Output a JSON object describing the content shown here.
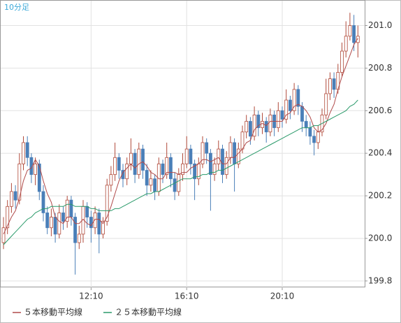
{
  "chart_data": {
    "type": "candlestick",
    "label": "10分足",
    "open": [
      199.98,
      200.05,
      200.15,
      200.22,
      200.18,
      200.35,
      200.45,
      200.38,
      200.3,
      200.35,
      200.22,
      200.12,
      200.05,
      200.1,
      200.02,
      200.12,
      200.08,
      200.18,
      200.1,
      199.98,
      200.02,
      200.15,
      200.1,
      200.05,
      200.12,
      200.02,
      200.08,
      200.25,
      200.3,
      200.38,
      200.32,
      200.28,
      200.35,
      200.4,
      200.3,
      200.42,
      200.32,
      200.25,
      200.28,
      200.22,
      200.35,
      200.3,
      200.38,
      200.28,
      200.22,
      200.3,
      200.35,
      200.42,
      200.35,
      200.28,
      200.35,
      200.45,
      200.4,
      200.3,
      200.35,
      200.42,
      200.3,
      200.38,
      200.45,
      200.35,
      200.42,
      200.5,
      200.55,
      200.48,
      200.58,
      200.52,
      200.55,
      200.5,
      200.58,
      200.52,
      200.6,
      200.56,
      200.65,
      200.6,
      200.7,
      200.62,
      200.55,
      200.52,
      200.48,
      200.45,
      200.5,
      200.58,
      200.68,
      200.75,
      200.7,
      200.78,
      200.88,
      200.95,
      201.0,
      200.92
    ],
    "high": [
      200.1,
      200.18,
      200.26,
      200.25,
      200.4,
      200.48,
      200.48,
      200.4,
      200.38,
      200.37,
      200.25,
      200.15,
      200.14,
      200.12,
      200.16,
      200.15,
      200.2,
      200.2,
      200.12,
      200.06,
      200.18,
      200.17,
      200.13,
      200.15,
      200.14,
      200.1,
      200.28,
      200.34,
      200.45,
      200.4,
      200.35,
      200.38,
      200.47,
      200.42,
      200.45,
      200.44,
      200.35,
      200.32,
      200.3,
      200.38,
      200.37,
      200.45,
      200.4,
      200.31,
      200.33,
      200.4,
      200.48,
      200.44,
      200.37,
      200.38,
      200.48,
      200.47,
      200.42,
      200.38,
      200.46,
      200.44,
      200.41,
      200.48,
      200.47,
      200.45,
      200.53,
      200.58,
      200.57,
      200.62,
      200.6,
      200.59,
      200.57,
      200.61,
      200.6,
      200.64,
      200.62,
      200.7,
      200.67,
      200.73,
      200.72,
      200.64,
      200.58,
      200.55,
      200.51,
      200.53,
      200.61,
      200.75,
      200.78,
      200.78,
      200.82,
      200.92,
      201.02,
      201.06,
      201.05,
      201.0
    ],
    "low": [
      199.95,
      200.02,
      200.12,
      200.14,
      200.16,
      200.32,
      200.34,
      200.26,
      200.25,
      200.18,
      200.08,
      200.02,
      200.01,
      199.98,
      200.0,
      200.04,
      200.05,
      200.06,
      199.83,
      199.95,
      199.98,
      200.05,
      199.98,
      200.02,
      199.93,
      200.0,
      200.06,
      200.22,
      200.27,
      200.28,
      200.24,
      200.25,
      200.32,
      200.26,
      200.28,
      200.28,
      200.2,
      200.22,
      200.18,
      200.2,
      200.26,
      200.28,
      200.24,
      200.18,
      200.2,
      200.27,
      200.33,
      200.3,
      200.18,
      200.25,
      200.33,
      200.35,
      200.13,
      200.27,
      200.32,
      200.26,
      200.28,
      200.35,
      200.22,
      200.33,
      200.4,
      200.47,
      200.44,
      200.46,
      200.48,
      200.49,
      200.45,
      200.48,
      200.48,
      200.5,
      200.52,
      200.54,
      200.56,
      200.58,
      200.58,
      200.5,
      200.48,
      200.44,
      200.39,
      200.42,
      200.48,
      200.56,
      200.65,
      200.66,
      200.68,
      200.76,
      200.85,
      200.93,
      200.88,
      200.85
    ],
    "close": [
      200.05,
      200.15,
      200.22,
      200.18,
      200.35,
      200.45,
      200.38,
      200.3,
      200.35,
      200.22,
      200.12,
      200.05,
      200.1,
      200.02,
      200.12,
      200.08,
      200.18,
      200.1,
      199.98,
      200.02,
      200.15,
      200.1,
      200.05,
      200.12,
      200.02,
      200.08,
      200.25,
      200.3,
      200.38,
      200.32,
      200.28,
      200.35,
      200.4,
      200.3,
      200.42,
      200.32,
      200.25,
      200.28,
      200.22,
      200.35,
      200.3,
      200.38,
      200.28,
      200.22,
      200.3,
      200.35,
      200.42,
      200.35,
      200.28,
      200.35,
      200.45,
      200.4,
      200.3,
      200.35,
      200.42,
      200.3,
      200.38,
      200.45,
      200.35,
      200.42,
      200.5,
      200.55,
      200.48,
      200.58,
      200.52,
      200.55,
      200.5,
      200.58,
      200.52,
      200.6,
      200.56,
      200.65,
      200.6,
      200.7,
      200.62,
      200.55,
      200.52,
      200.48,
      200.45,
      200.5,
      200.58,
      200.68,
      200.75,
      200.7,
      200.78,
      200.88,
      200.95,
      201.0,
      200.92,
      200.95
    ],
    "up_color": "#b04a3a",
    "down_color": "#4a7fb8",
    "series": [
      {
        "name": "５本移動平均線",
        "color": "#b04a4a",
        "values": [
          200.02,
          200.06,
          200.1,
          200.13,
          200.19,
          200.27,
          200.32,
          200.33,
          200.37,
          200.34,
          200.27,
          200.21,
          200.17,
          200.1,
          200.08,
          200.07,
          200.1,
          200.1,
          200.07,
          200.07,
          200.09,
          200.07,
          200.06,
          200.09,
          200.09,
          200.07,
          200.1,
          200.15,
          200.21,
          200.27,
          200.31,
          200.33,
          200.35,
          200.33,
          200.35,
          200.36,
          200.34,
          200.31,
          200.3,
          200.28,
          200.28,
          200.31,
          200.31,
          200.31,
          200.3,
          200.31,
          200.31,
          200.33,
          200.34,
          200.35,
          200.37,
          200.37,
          200.36,
          200.37,
          200.38,
          200.35,
          200.35,
          200.38,
          200.38,
          200.4,
          200.42,
          200.45,
          200.46,
          200.51,
          200.53,
          200.54,
          200.53,
          200.55,
          200.55,
          200.55,
          200.55,
          200.58,
          200.59,
          200.62,
          200.63,
          200.62,
          200.6,
          200.57,
          200.52,
          200.5,
          200.51,
          200.54,
          200.59,
          200.63,
          200.7,
          200.76,
          200.81,
          200.86,
          200.91,
          200.94
        ]
      },
      {
        "name": "２５本移動平均線",
        "color": "#2a9a6a",
        "values": [
          199.97,
          199.99,
          200.01,
          200.03,
          200.05,
          200.07,
          200.09,
          200.1,
          200.12,
          200.13,
          200.14,
          200.14,
          200.15,
          200.15,
          200.15,
          200.15,
          200.16,
          200.16,
          200.15,
          200.15,
          200.15,
          200.15,
          200.14,
          200.14,
          200.13,
          200.13,
          200.13,
          200.13,
          200.14,
          200.14,
          200.15,
          200.16,
          200.17,
          200.18,
          200.19,
          200.2,
          200.21,
          200.21,
          200.22,
          200.22,
          200.23,
          200.24,
          200.25,
          200.26,
          200.27,
          200.28,
          200.28,
          200.28,
          200.29,
          200.29,
          200.3,
          200.3,
          200.31,
          200.31,
          200.32,
          200.32,
          200.33,
          200.34,
          200.35,
          200.36,
          200.37,
          200.38,
          200.39,
          200.4,
          200.41,
          200.42,
          200.43,
          200.44,
          200.45,
          200.46,
          200.47,
          200.48,
          200.49,
          200.5,
          200.51,
          200.52,
          200.52,
          200.52,
          200.53,
          200.53,
          200.54,
          200.55,
          200.56,
          200.57,
          200.58,
          200.59,
          200.6,
          200.62,
          200.63,
          200.65
        ]
      }
    ],
    "ylim": [
      199.77,
      201.12
    ],
    "yticks": [
      199.8,
      {
        "value": 200,
        "label": "200.0"
      },
      200.2,
      200.4,
      200.6,
      200.8,
      {
        "value": 201,
        "label": "201.0"
      }
    ],
    "xticks": [
      {
        "value": 22,
        "label": "12:10"
      },
      {
        "value": 46,
        "label": "16:10"
      },
      {
        "value": 70,
        "label": "20:10"
      }
    ],
    "grid": true
  }
}
